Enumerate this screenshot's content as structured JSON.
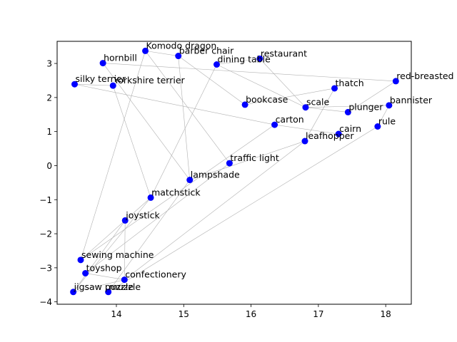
{
  "chart_data": {
    "type": "scatter",
    "title": "",
    "xlabel": "",
    "ylabel": "",
    "xlim": [
      13.12,
      18.38
    ],
    "ylim": [
      -4.07,
      3.65
    ],
    "grid": false,
    "xticks": [
      14,
      15,
      16,
      17,
      18
    ],
    "yticks": [
      -4,
      -3,
      -2,
      -1,
      0,
      1,
      2,
      3
    ],
    "point_color": "#0000ff",
    "edge_color": "#b0b0b0",
    "points": [
      {
        "label": "Komodo dragon",
        "x": 14.43,
        "y": 3.37
      },
      {
        "label": "barber chair",
        "x": 14.92,
        "y": 3.22
      },
      {
        "label": "restaurant",
        "x": 16.13,
        "y": 3.14
      },
      {
        "label": "hornbill",
        "x": 13.8,
        "y": 3.01
      },
      {
        "label": "dining table",
        "x": 15.49,
        "y": 2.97
      },
      {
        "label": "red-breasted merganser",
        "x": 18.15,
        "y": 2.48
      },
      {
        "label": "silky terrier",
        "x": 13.38,
        "y": 2.39
      },
      {
        "label": "Yorkshire terrier",
        "x": 13.95,
        "y": 2.35
      },
      {
        "label": "thatch",
        "x": 17.24,
        "y": 2.27
      },
      {
        "label": "bookcase",
        "x": 15.91,
        "y": 1.79
      },
      {
        "label": "bannister",
        "x": 18.05,
        "y": 1.77
      },
      {
        "label": "scale",
        "x": 16.81,
        "y": 1.71
      },
      {
        "label": "plunger",
        "x": 17.44,
        "y": 1.57
      },
      {
        "label": "carton",
        "x": 16.35,
        "y": 1.2
      },
      {
        "label": "rule",
        "x": 17.88,
        "y": 1.15
      },
      {
        "label": "cairn",
        "x": 17.3,
        "y": 0.93
      },
      {
        "label": "leafhopper",
        "x": 16.8,
        "y": 0.72
      },
      {
        "label": "traffic light",
        "x": 15.68,
        "y": 0.07
      },
      {
        "label": "lampshade",
        "x": 15.09,
        "y": -0.42
      },
      {
        "label": "matchstick",
        "x": 14.51,
        "y": -0.94
      },
      {
        "label": "joystick",
        "x": 14.13,
        "y": -1.61
      },
      {
        "label": "sewing machine",
        "x": 13.47,
        "y": -2.77
      },
      {
        "label": "toyshop",
        "x": 13.54,
        "y": -3.16
      },
      {
        "label": "confectionery",
        "x": 14.12,
        "y": -3.35
      },
      {
        "label": "jigsaw puzzle",
        "x": 13.36,
        "y": -3.71
      },
      {
        "label": "muzzle",
        "x": 13.88,
        "y": -3.71
      }
    ],
    "edges": [
      [
        "hornbill",
        "red-breasted merganser"
      ],
      [
        "hornbill",
        "lampshade"
      ],
      [
        "Komodo dragon",
        "barber chair"
      ],
      [
        "Komodo dragon",
        "traffic light"
      ],
      [
        "Komodo dragon",
        "sewing machine"
      ],
      [
        "barber chair",
        "lampshade"
      ],
      [
        "barber chair",
        "bookcase"
      ],
      [
        "restaurant",
        "scale"
      ],
      [
        "restaurant",
        "dining table"
      ],
      [
        "dining table",
        "matchstick"
      ],
      [
        "dining table",
        "scale"
      ],
      [
        "red-breasted merganser",
        "plunger"
      ],
      [
        "silky terrier",
        "carton"
      ],
      [
        "silky terrier",
        "Yorkshire terrier"
      ],
      [
        "Yorkshire terrier",
        "matchstick"
      ],
      [
        "thatch",
        "bookcase"
      ],
      [
        "thatch",
        "leafhopper"
      ],
      [
        "scale",
        "bannister"
      ],
      [
        "bannister",
        "rule"
      ],
      [
        "plunger",
        "scale"
      ],
      [
        "carton",
        "cairn"
      ],
      [
        "carton",
        "sewing machine"
      ],
      [
        "rule",
        "muzzle"
      ],
      [
        "leafhopper",
        "lampshade"
      ],
      [
        "leafhopper",
        "confectionery"
      ],
      [
        "traffic light",
        "toyshop"
      ],
      [
        "matchstick",
        "jigsaw puzzle"
      ],
      [
        "joystick",
        "confectionery"
      ],
      [
        "joystick",
        "jigsaw puzzle"
      ],
      [
        "sewing machine",
        "matchstick"
      ],
      [
        "toyshop",
        "confectionery"
      ],
      [
        "confectionery",
        "jigsaw puzzle"
      ],
      [
        "muzzle",
        "lampshade"
      ]
    ]
  }
}
